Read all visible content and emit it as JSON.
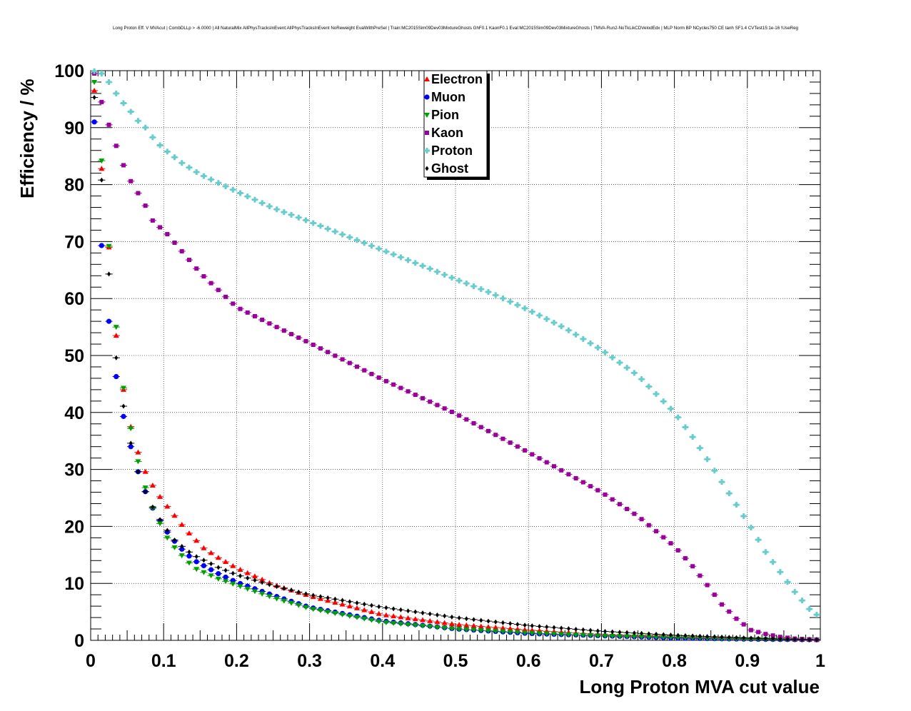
{
  "chart_data": {
    "type": "scatter",
    "title": "Long Proton Eff. V MVAcut | CombDLLp > -6.0000 | All NaturalMix AllPhysTracksInEvent:AllPhysTracksInEvent NoReweight EvalWithPreSel | Train:MC2015Sim09Dev03MixtureGhosts GhF0.1 KaonF0.1 Eval:MC2015Sim09Dev03MixtureGhosts | TMVA-Run2-NoTkLikCDVelodEdx | MLP Norm BP NCycles750 CE tanh SF1.4 CVTest15:1e-16 !UseReg",
    "xlabel": "Long Proton MVA cut value",
    "ylabel": "Efficiency / %",
    "xlim": [
      0,
      1
    ],
    "ylim": [
      0,
      100
    ],
    "xticks": [
      "0",
      "0.1",
      "0.2",
      "0.3",
      "0.4",
      "0.5",
      "0.6",
      "0.7",
      "0.8",
      "0.9",
      "1"
    ],
    "yticks": [
      "0",
      "10",
      "20",
      "30",
      "40",
      "50",
      "60",
      "70",
      "80",
      "90",
      "100"
    ],
    "grid": true,
    "legend_position": "top-center",
    "x_bin_centers": "0.005 to 0.995 in steps of 0.01",
    "series": [
      {
        "name": "Electron",
        "color": "#ff0000",
        "marker": "triangle-up",
        "knots_x": [
          0.005,
          0.015,
          0.025,
          0.035,
          0.045,
          0.055,
          0.065,
          0.075,
          0.085,
          0.095,
          0.105,
          0.115,
          0.125,
          0.135,
          0.145,
          0.155,
          0.175,
          0.2,
          0.25,
          0.3,
          0.4,
          0.5,
          0.6,
          0.7,
          0.8,
          0.9,
          0.995
        ],
        "knots_y": [
          96.5,
          82.8,
          69.0,
          53.5,
          44.0,
          37.5,
          33.0,
          29.6,
          27.2,
          25.2,
          23.5,
          21.9,
          20.3,
          18.8,
          17.5,
          16.2,
          14.5,
          12.7,
          9.8,
          7.8,
          4.5,
          2.8,
          1.8,
          1.0,
          0.6,
          0.3,
          0.1
        ]
      },
      {
        "name": "Muon",
        "color": "#0000ff",
        "marker": "circle",
        "knots_x": [
          0.005,
          0.015,
          0.025,
          0.035,
          0.045,
          0.055,
          0.065,
          0.075,
          0.085,
          0.095,
          0.105,
          0.115,
          0.125,
          0.135,
          0.145,
          0.175,
          0.2,
          0.25,
          0.3,
          0.4,
          0.5,
          0.6,
          0.7,
          0.8,
          0.9,
          0.995
        ],
        "knots_y": [
          91.0,
          69.3,
          56.0,
          46.3,
          39.3,
          34.0,
          29.6,
          26.1,
          23.2,
          21.0,
          19.0,
          17.4,
          16.0,
          14.8,
          13.8,
          11.7,
          10.2,
          7.9,
          5.8,
          3.4,
          2.0,
          1.2,
          0.8,
          0.4,
          0.2,
          0.1
        ]
      },
      {
        "name": "Pion",
        "color": "#00a000",
        "marker": "triangle-down",
        "knots_x": [
          0.005,
          0.015,
          0.025,
          0.035,
          0.045,
          0.055,
          0.065,
          0.075,
          0.085,
          0.095,
          0.105,
          0.115,
          0.125,
          0.135,
          0.145,
          0.175,
          0.2,
          0.25,
          0.3,
          0.4,
          0.5,
          0.6,
          0.7,
          0.8,
          0.9,
          0.995
        ],
        "knots_y": [
          98.0,
          84.2,
          69.2,
          55.0,
          44.3,
          37.2,
          31.4,
          26.8,
          23.2,
          20.5,
          18.0,
          16.3,
          14.9,
          13.6,
          12.5,
          10.8,
          9.7,
          7.5,
          5.6,
          3.2,
          2.0,
          1.3,
          0.8,
          0.5,
          0.2,
          0.1
        ]
      },
      {
        "name": "Kaon",
        "color": "#990099",
        "marker": "square",
        "knots_x": [
          0.005,
          0.015,
          0.025,
          0.035,
          0.045,
          0.055,
          0.065,
          0.075,
          0.085,
          0.095,
          0.105,
          0.125,
          0.15,
          0.2,
          0.25,
          0.3,
          0.35,
          0.4,
          0.45,
          0.5,
          0.55,
          0.6,
          0.65,
          0.7,
          0.75,
          0.8,
          0.825,
          0.845,
          0.865,
          0.885,
          0.905,
          0.925,
          0.945,
          0.965,
          0.995
        ],
        "knots_y": [
          99.5,
          94.5,
          90.5,
          86.8,
          83.4,
          80.6,
          78.5,
          76.3,
          73.7,
          72.5,
          71.3,
          68.3,
          64.5,
          58.5,
          55.3,
          52.2,
          49.0,
          45.8,
          42.8,
          39.8,
          36.4,
          33.0,
          29.5,
          26.0,
          21.8,
          16.5,
          13.0,
          9.7,
          6.3,
          3.8,
          1.8,
          1.1,
          0.6,
          0.3,
          0.1
        ]
      },
      {
        "name": "Proton",
        "color": "#66cccc",
        "marker": "cross",
        "knots_x": [
          0.005,
          0.015,
          0.025,
          0.035,
          0.045,
          0.055,
          0.065,
          0.075,
          0.085,
          0.095,
          0.105,
          0.125,
          0.15,
          0.2,
          0.25,
          0.3,
          0.35,
          0.4,
          0.45,
          0.5,
          0.55,
          0.6,
          0.65,
          0.7,
          0.75,
          0.8,
          0.825,
          0.845,
          0.865,
          0.885,
          0.905,
          0.925,
          0.945,
          0.965,
          0.985,
          0.995
        ],
        "knots_y": [
          99.9,
          99.5,
          98.0,
          96.0,
          94.3,
          92.8,
          91.2,
          90.0,
          88.3,
          86.9,
          85.8,
          83.8,
          81.8,
          78.8,
          75.9,
          73.5,
          71.0,
          68.5,
          66.0,
          63.4,
          60.9,
          58.0,
          54.8,
          51.0,
          46.5,
          40.0,
          35.7,
          31.8,
          27.8,
          23.8,
          19.8,
          15.5,
          12.0,
          8.5,
          5.5,
          4.5
        ]
      },
      {
        "name": "Ghost",
        "color": "#000000",
        "marker": "diamond",
        "knots_x": [
          0.005,
          0.015,
          0.025,
          0.035,
          0.045,
          0.055,
          0.065,
          0.075,
          0.085,
          0.095,
          0.105,
          0.115,
          0.125,
          0.135,
          0.145,
          0.175,
          0.2,
          0.25,
          0.3,
          0.4,
          0.5,
          0.6,
          0.7,
          0.8,
          0.9,
          0.995
        ],
        "knots_y": [
          95.3,
          80.8,
          64.3,
          49.6,
          41.1,
          34.6,
          29.6,
          26.1,
          23.4,
          21.2,
          19.3,
          17.6,
          16.5,
          15.5,
          14.7,
          12.8,
          11.5,
          9.6,
          8.0,
          5.8,
          4.0,
          2.6,
          1.6,
          0.9,
          0.4,
          0.1
        ]
      }
    ]
  }
}
